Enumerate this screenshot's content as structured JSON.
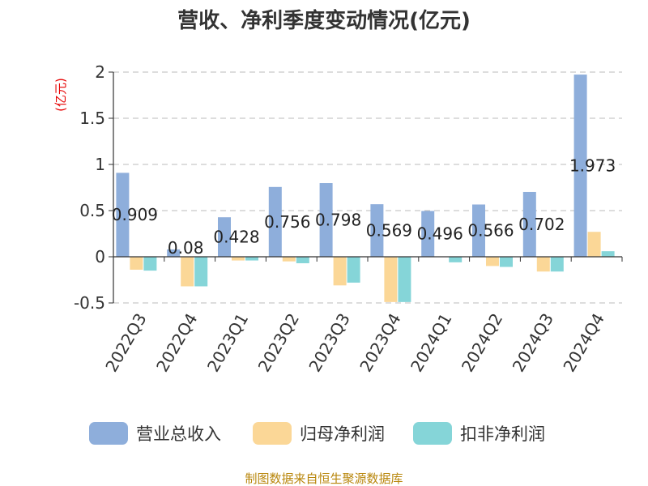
{
  "chart_data": {
    "type": "bar",
    "title": "营收、净利季度变动情况(亿元)",
    "unit_label": "(亿元)",
    "categories": [
      "2022Q3",
      "2022Q4",
      "2023Q1",
      "2023Q2",
      "2023Q3",
      "2023Q4",
      "2024Q1",
      "2024Q2",
      "2024Q3",
      "2024Q4"
    ],
    "series": [
      {
        "name": "营业总收入",
        "color": "#8eaedb",
        "values": [
          0.909,
          0.08,
          0.428,
          0.756,
          0.798,
          0.569,
          0.496,
          0.566,
          0.702,
          1.973
        ],
        "data_labels": [
          "0.909",
          "0.08",
          "0.428",
          "0.756",
          "0.798",
          "0.569",
          "0.496",
          "0.566",
          "0.702",
          "1.973"
        ]
      },
      {
        "name": "归母净利润",
        "color": "#fbd797",
        "values": [
          -0.14,
          -0.32,
          -0.04,
          -0.05,
          -0.31,
          -0.49,
          0.0,
          -0.1,
          -0.16,
          0.27
        ]
      },
      {
        "name": "扣非净利润",
        "color": "#85d5d8",
        "values": [
          -0.15,
          -0.32,
          -0.04,
          -0.07,
          -0.28,
          -0.49,
          -0.06,
          -0.11,
          -0.16,
          0.06
        ]
      }
    ],
    "yticks": [
      "-0.5",
      "0",
      "0.5",
      "1",
      "1.5",
      "2"
    ],
    "ylim": [
      -0.5,
      2
    ],
    "grid": true,
    "legend_position": "bottom",
    "source": "制图数据来自恒生聚源数据库"
  }
}
